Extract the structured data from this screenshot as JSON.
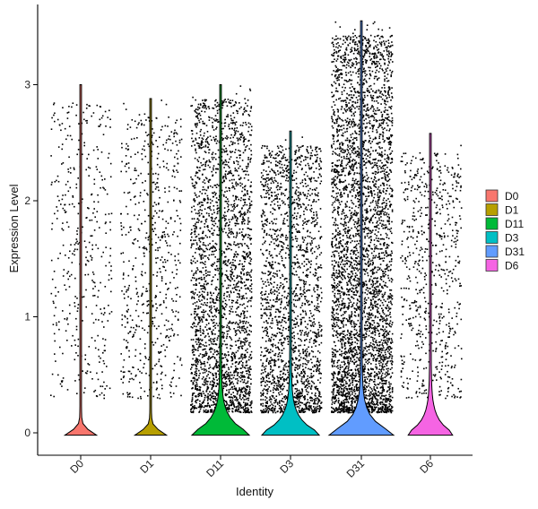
{
  "chart_data": {
    "type": "violin",
    "title": "",
    "xlabel": "Identity",
    "ylabel": "Expression Level",
    "ylim": [
      -0.2,
      3.6
    ],
    "y_ticks": [
      0,
      1,
      2,
      3
    ],
    "categories": [
      "D0",
      "D1",
      "D11",
      "D3",
      "D31",
      "D6"
    ],
    "legend": {
      "position": "right",
      "entries": [
        "D0",
        "D1",
        "D11",
        "D3",
        "D31",
        "D6"
      ]
    },
    "grid": false,
    "series": [
      {
        "name": "D0",
        "color": "#F8766D",
        "max": 3.0,
        "zero_density": 0.02,
        "points_nonzero": 400
      },
      {
        "name": "D1",
        "color": "#B79F00",
        "max": 2.88,
        "zero_density": 0.02,
        "points_nonzero": 600
      },
      {
        "name": "D11",
        "color": "#00BA38",
        "max": 3.0,
        "zero_density": 0.22,
        "points_nonzero": 2600
      },
      {
        "name": "D3",
        "color": "#00BFC4",
        "max": 2.6,
        "zero_density": 0.22,
        "points_nonzero": 2000
      },
      {
        "name": "D31",
        "color": "#619CFF",
        "max": 3.55,
        "zero_density": 0.28,
        "points_nonzero": 4200
      },
      {
        "name": "D6",
        "color": "#F564E3",
        "max": 2.58,
        "zero_density": 0.12,
        "points_nonzero": 650
      }
    ]
  }
}
